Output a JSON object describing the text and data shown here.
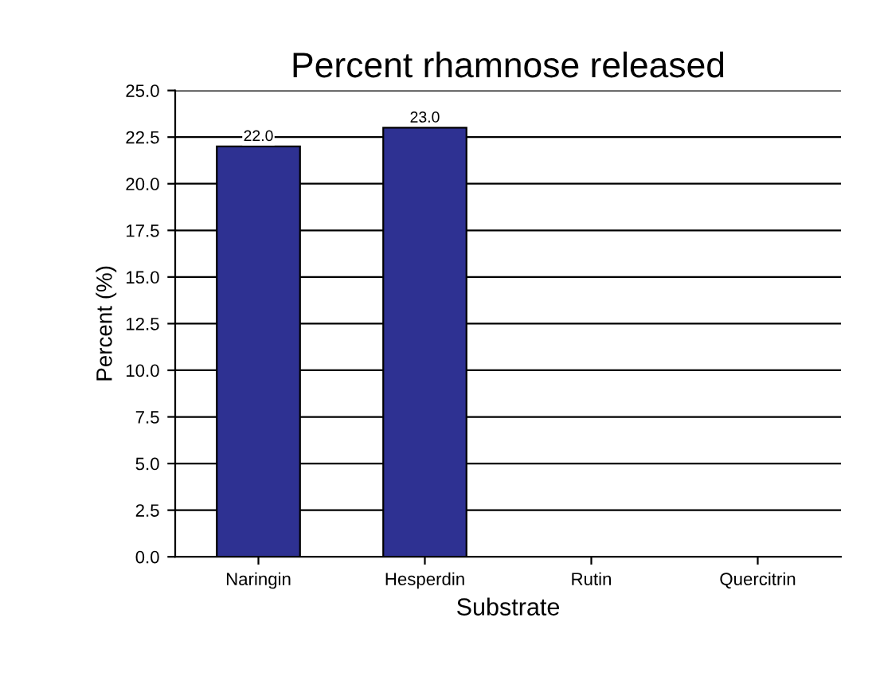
{
  "chart_data": {
    "type": "bar",
    "title": "Percent rhamnose released",
    "xlabel": "Substrate",
    "ylabel": "Percent (%)",
    "categories": [
      "Naringin",
      "Hesperdin",
      "Rutin",
      "Quercitrin"
    ],
    "values": [
      22.0,
      23.0,
      null,
      null
    ],
    "value_labels": [
      "22.0",
      "23.0",
      null,
      null
    ],
    "color": "#2e3192",
    "ylim": [
      0,
      25
    ],
    "yticks": [
      {
        "value": 0,
        "label": "0.0"
      },
      {
        "value": 2.5,
        "label": "2.5"
      },
      {
        "value": 5,
        "label": "5.0"
      },
      {
        "value": 7.5,
        "label": "7.5"
      },
      {
        "value": 10,
        "label": "10.0"
      },
      {
        "value": 12.5,
        "label": "12.5"
      },
      {
        "value": 15,
        "label": "15.0"
      },
      {
        "value": 17.5,
        "label": "17.5"
      },
      {
        "value": 20,
        "label": "20.0"
      },
      {
        "value": 22.5,
        "label": "22.5"
      },
      {
        "value": 25,
        "label": "25.0"
      }
    ],
    "grid": "y"
  }
}
